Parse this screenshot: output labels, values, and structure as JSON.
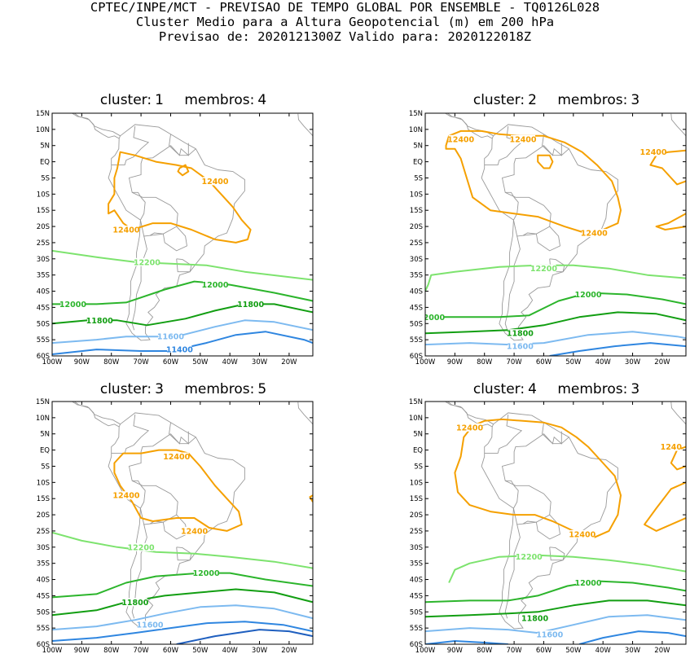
{
  "header": {
    "line1": "CPTEC/INPE/MCT - PREVISAO DE TEMPO GLOBAL POR ENSEMBLE - TQ0126L028",
    "line2": "Cluster Medio para a Altura Geopotencial (m) em 200 hPa",
    "line3": "Previsao de: 2020121300Z   Valido para: 2020122018Z"
  },
  "axes": {
    "lat_labels": [
      "15N",
      "10N",
      "5N",
      "EQ",
      "5S",
      "10S",
      "15S",
      "20S",
      "25S",
      "30S",
      "35S",
      "40S",
      "45S",
      "50S",
      "55S",
      "60S"
    ],
    "lon_labels": [
      "100W",
      "90W",
      "80W",
      "70W",
      "60W",
      "50W",
      "40W",
      "30W",
      "20W"
    ]
  },
  "colors": {
    "c12400": "#f5a000",
    "c12200": "#7de36e",
    "c12000": "#2cb52c",
    "c11800": "#129e12",
    "c11600": "#7dbaf0",
    "c11400": "#2f86e0",
    "coast": "#9a9a9a"
  },
  "panels": [
    {
      "cluster_label": "cluster:",
      "cluster": "1",
      "membros_label": "membros:",
      "membros": "4",
      "labels": [
        {
          "text": "12400",
          "color": "c12400",
          "lon": -45,
          "lat": -6
        },
        {
          "text": "12400",
          "color": "c12400",
          "lon": -75,
          "lat": -21
        },
        {
          "text": "12200",
          "color": "c12200",
          "lon": -68,
          "lat": -31
        },
        {
          "text": "12000",
          "color": "c12000",
          "lon": -45,
          "lat": -38
        },
        {
          "text": "12000",
          "color": "c12000",
          "lon": -93,
          "lat": -44
        },
        {
          "text": "11800",
          "color": "c11800",
          "lon": -33,
          "lat": -44
        },
        {
          "text": "11800",
          "color": "c11800",
          "lon": -84,
          "lat": -49
        },
        {
          "text": "11600",
          "color": "c11600",
          "lon": -60,
          "lat": -54
        },
        {
          "text": "11400",
          "color": "c11400",
          "lon": -57,
          "lat": -58
        }
      ]
    },
    {
      "cluster_label": "cluster:",
      "cluster": "2",
      "membros_label": "membros:",
      "membros": "3",
      "labels": [
        {
          "text": "12400",
          "color": "c12400",
          "lon": -88,
          "lat": 7
        },
        {
          "text": "12400",
          "color": "c12400",
          "lon": -67,
          "lat": 7
        },
        {
          "text": "12400",
          "color": "c12400",
          "lon": -23,
          "lat": 3
        },
        {
          "text": "12400",
          "color": "c12400",
          "lon": -43,
          "lat": -22
        },
        {
          "text": "12200",
          "color": "c12200",
          "lon": -60,
          "lat": -33
        },
        {
          "text": "12000",
          "color": "c12000",
          "lon": -45,
          "lat": -41
        },
        {
          "text": "2000",
          "color": "c12000",
          "lon": -97,
          "lat": -48
        },
        {
          "text": "11800",
          "color": "c11800",
          "lon": -68,
          "lat": -53
        },
        {
          "text": "11600",
          "color": "c11600",
          "lon": -68,
          "lat": -57
        }
      ]
    },
    {
      "cluster_label": "cluster:",
      "cluster": "3",
      "membros_label": "membros:",
      "membros": "5",
      "labels": [
        {
          "text": "12400",
          "color": "c12400",
          "lon": -58,
          "lat": -2
        },
        {
          "text": "12400",
          "color": "c12400",
          "lon": -75,
          "lat": -14
        },
        {
          "text": "12400",
          "color": "c12400",
          "lon": -52,
          "lat": -25
        },
        {
          "text": "12200",
          "color": "c12200",
          "lon": -70,
          "lat": -30
        },
        {
          "text": "12000",
          "color": "c12000",
          "lon": -48,
          "lat": -38
        },
        {
          "text": "11800",
          "color": "c11800",
          "lon": -72,
          "lat": -47
        },
        {
          "text": "11600",
          "color": "c11600",
          "lon": -67,
          "lat": -54
        }
      ]
    },
    {
      "cluster_label": "cluster:",
      "cluster": "4",
      "membros_label": "membros:",
      "membros": "3",
      "labels": [
        {
          "text": "12400",
          "color": "c12400",
          "lon": -85,
          "lat": 7
        },
        {
          "text": "1240",
          "color": "c12400",
          "lon": -17,
          "lat": 1
        },
        {
          "text": "12400",
          "color": "c12400",
          "lon": -47,
          "lat": -26
        },
        {
          "text": "12200",
          "color": "c12200",
          "lon": -65,
          "lat": -33
        },
        {
          "text": "12000",
          "color": "c12000",
          "lon": -45,
          "lat": -41
        },
        {
          "text": "11800",
          "color": "c11800",
          "lon": -63,
          "lat": -52
        },
        {
          "text": "11600",
          "color": "c11600",
          "lon": -58,
          "lat": -57
        }
      ]
    }
  ]
}
